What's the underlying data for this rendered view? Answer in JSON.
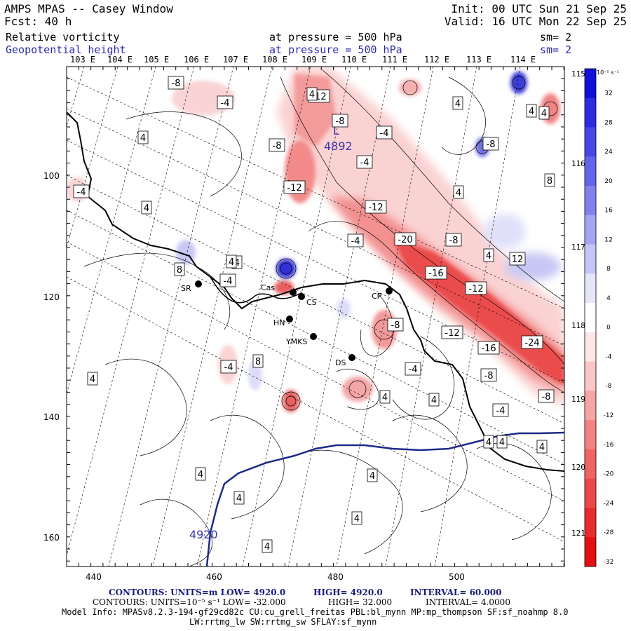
{
  "header": {
    "title": "AMPS MPAS -- Casey Window",
    "forecast": "Fcst:    40 h",
    "init": "Init: 00 UTC Sun 21 Sep 25",
    "valid": "Valid: 16 UTC Mon 22 Sep 25",
    "field1_name": "Relative vorticity",
    "field1_level": "at pressure =  500 hPa",
    "field1_sm": "sm= 2",
    "field2_name": "Geopotential height",
    "field2_level": "at pressure =  500 hPa",
    "field2_sm": "sm= 2"
  },
  "top_longitudes": [
    "103 E",
    "104 E",
    "105 E",
    "106 E",
    "107 E",
    "108 E",
    "109 E",
    "110 E",
    "111 E",
    "112 E",
    "113 E",
    "114 E"
  ],
  "right_longitudes": [
    "115 E",
    "116 E",
    "117 E",
    "118 E",
    "119 E",
    "120 E",
    "121 E"
  ],
  "x_ticks": [
    "440",
    "460",
    "480",
    "500"
  ],
  "y_ticks": [
    "100",
    "120",
    "140",
    "160"
  ],
  "colorbar": {
    "units": "10⁻⁵ s⁻¹",
    "labels": [
      "32",
      "28",
      "24",
      "20",
      "16",
      "12",
      "8",
      "4",
      "0",
      "-4",
      "-8",
      "-12",
      "-16",
      "-20",
      "-24",
      "-28",
      "-32"
    ],
    "colors": [
      "#1010d8",
      "#2c2ce0",
      "#4848e6",
      "#6464ea",
      "#8282ee",
      "#a4a4f2",
      "#c6c6f6",
      "#e6e6fb",
      "#ffffff",
      "#fde6e6",
      "#fbc6c6",
      "#f7a4a4",
      "#f38282",
      "#ef6464",
      "#eb4848",
      "#e72c2c",
      "#e21010"
    ]
  },
  "contour_labels": [
    {
      "t": "-8"
    },
    {
      "t": "-4"
    },
    {
      "t": "-12"
    },
    {
      "t": "-8"
    },
    {
      "t": "-4"
    },
    {
      "t": "4"
    },
    {
      "t": "-8"
    },
    {
      "t": "-4"
    },
    {
      "t": "-12"
    },
    {
      "t": "-4"
    },
    {
      "t": "4"
    },
    {
      "t": "-12"
    },
    {
      "t": "4"
    },
    {
      "t": "8"
    },
    {
      "t": "-4"
    },
    {
      "t": "-20"
    },
    {
      "t": "-8"
    },
    {
      "t": "4"
    },
    {
      "t": "12"
    },
    {
      "t": "-16"
    },
    {
      "t": "-12"
    },
    {
      "t": "4"
    },
    {
      "t": "8"
    },
    {
      "t": "-8"
    },
    {
      "t": "-12"
    },
    {
      "t": "-16"
    },
    {
      "t": "-24"
    },
    {
      "t": "-4"
    },
    {
      "t": "8"
    },
    {
      "t": "4"
    },
    {
      "t": "-8"
    },
    {
      "t": "-4"
    },
    {
      "t": "4"
    },
    {
      "t": "4"
    },
    {
      "t": "-8"
    },
    {
      "t": "-4"
    },
    {
      "t": "4"
    },
    {
      "t": "4"
    },
    {
      "t": "4"
    },
    {
      "t": "4"
    },
    {
      "t": "4"
    },
    {
      "t": "4"
    },
    {
      "t": "4"
    },
    {
      "t": "4"
    },
    {
      "t": "4"
    },
    {
      "t": "4"
    },
    {
      "t": "4"
    },
    {
      "t": "4"
    },
    {
      "t": "-4"
    },
    {
      "t": "-8"
    },
    {
      "t": "4"
    }
  ],
  "height_labels": {
    "low_marker": "L",
    "low_value": "4892",
    "contour_value": "4920"
  },
  "stations": [
    "SR",
    "Cas",
    "CS",
    "HN",
    "YMKS",
    "CP",
    "DS"
  ],
  "footer": {
    "line1_contours": "CONTOURS:  UNITS=m  LOW=  4920.0",
    "line1_high": "HIGH=  4920.0",
    "line1_interval": "INTERVAL=   60.000",
    "line2_contours": "CONTOURS:  UNITS=10⁻⁵ s⁻¹  LOW= -32.000",
    "line2_high": "HIGH=  32.000",
    "line2_interval": "INTERVAL=   4.0000",
    "model_info": "Model Info: MPASv8.2.3-194-gf29cd82c CU:cu_grell_freitas PBL:bl_mynn MP:mp_thompson SF:sf_noahmp 8.0",
    "model_info2": "LW:rrtmg_lw SW:rrtmg_sw SFLAY:sf_mynn"
  }
}
